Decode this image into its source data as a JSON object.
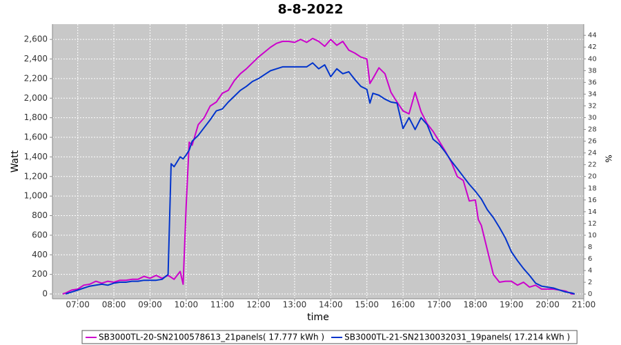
{
  "chart_data": {
    "type": "line",
    "title": "8-8-2022",
    "x_label": "time",
    "y_label": "Watt",
    "y2_label": "%",
    "grid": true,
    "legend": "bottom",
    "x": [
      "06:35",
      "06:40",
      "06:50",
      "07:00",
      "07:10",
      "07:20",
      "07:30",
      "07:40",
      "07:50",
      "08:00",
      "08:10",
      "08:20",
      "08:30",
      "08:40",
      "08:50",
      "09:00",
      "09:10",
      "09:20",
      "09:30",
      "09:35",
      "09:40",
      "09:50",
      "09:55",
      "10:00",
      "10:05",
      "10:10",
      "10:20",
      "10:30",
      "10:40",
      "10:50",
      "11:00",
      "11:10",
      "11:20",
      "11:30",
      "11:40",
      "11:50",
      "12:00",
      "12:10",
      "12:20",
      "12:30",
      "12:40",
      "12:50",
      "13:00",
      "13:10",
      "13:20",
      "13:30",
      "13:40",
      "13:50",
      "14:00",
      "14:10",
      "14:20",
      "14:30",
      "14:40",
      "14:50",
      "15:00",
      "15:05",
      "15:10",
      "15:20",
      "15:30",
      "15:40",
      "15:50",
      "16:00",
      "16:10",
      "16:20",
      "16:30",
      "16:40",
      "16:50",
      "17:00",
      "17:10",
      "17:20",
      "17:30",
      "17:40",
      "17:50",
      "18:00",
      "18:05",
      "18:10",
      "18:20",
      "18:30",
      "18:40",
      "18:50",
      "19:00",
      "19:10",
      "19:20",
      "19:30",
      "19:40",
      "19:50",
      "20:00",
      "20:10",
      "20:20",
      "20:30",
      "20:40",
      "20:45"
    ],
    "series": [
      {
        "name": "SB3000TL-20-SN2100578613_21panels( 17.777 kWh )",
        "color": "#cc00cc",
        "values": [
          0,
          10,
          40,
          50,
          90,
          100,
          130,
          110,
          130,
          120,
          140,
          140,
          150,
          150,
          180,
          160,
          190,
          160,
          190,
          170,
          150,
          230,
          100,
          900,
          1550,
          1520,
          1730,
          1800,
          1920,
          1960,
          2050,
          2080,
          2180,
          2250,
          2300,
          2360,
          2420,
          2470,
          2520,
          2560,
          2580,
          2580,
          2570,
          2600,
          2570,
          2610,
          2580,
          2530,
          2600,
          2540,
          2580,
          2490,
          2460,
          2420,
          2400,
          2150,
          2200,
          2310,
          2250,
          2060,
          1960,
          1870,
          1840,
          2060,
          1860,
          1740,
          1660,
          1560,
          1460,
          1350,
          1200,
          1160,
          950,
          960,
          760,
          700,
          450,
          200,
          120,
          130,
          130,
          90,
          120,
          70,
          90,
          50,
          50,
          50,
          40,
          30,
          0,
          0
        ]
      },
      {
        "name": "SB3000TL-21-SN2130032031_19panels( 17.214 kWh )",
        "color": "#0033cc",
        "values": [
          null,
          0,
          20,
          40,
          60,
          80,
          90,
          100,
          90,
          110,
          120,
          120,
          130,
          130,
          140,
          140,
          140,
          150,
          200,
          1330,
          1300,
          1400,
          1380,
          1420,
          1470,
          1560,
          1620,
          1700,
          1780,
          1870,
          1890,
          1960,
          2020,
          2080,
          2120,
          2170,
          2200,
          2240,
          2280,
          2300,
          2320,
          2320,
          2320,
          2320,
          2320,
          2360,
          2300,
          2340,
          2220,
          2300,
          2250,
          2270,
          2190,
          2120,
          2090,
          1950,
          2050,
          2030,
          1990,
          1960,
          1950,
          1690,
          1800,
          1680,
          1800,
          1730,
          1580,
          1530,
          1450,
          1360,
          1280,
          1200,
          1120,
          1050,
          1010,
          970,
          860,
          780,
          680,
          570,
          430,
          340,
          260,
          190,
          110,
          80,
          70,
          60,
          40,
          20,
          10,
          0
        ]
      }
    ],
    "xlim": [
      "06:18",
      "21:00"
    ],
    "xticks": [
      "07:00",
      "08:00",
      "09:00",
      "10:00",
      "11:00",
      "12:00",
      "13:00",
      "14:00",
      "15:00",
      "16:00",
      "17:00",
      "18:00",
      "19:00",
      "20:00",
      "21:00"
    ],
    "ylim": [
      -49,
      2756
    ],
    "yticks": [
      0,
      200,
      400,
      600,
      800,
      {
        "value": 1000,
        "label": "1,000"
      },
      {
        "value": 1200,
        "label": "1,200"
      },
      {
        "value": 1400,
        "label": "1,400"
      },
      {
        "value": 1600,
        "label": "1,600"
      },
      {
        "value": 1800,
        "label": "1,800"
      },
      {
        "value": 2000,
        "label": "2,000"
      },
      {
        "value": 2200,
        "label": "2,200"
      },
      {
        "value": 2400,
        "label": "2,400"
      },
      {
        "value": 2600,
        "label": "2,600"
      }
    ],
    "y2lim": [
      -0.8,
      45.9
    ],
    "y2ticks": [
      0,
      2,
      4,
      6,
      8,
      10,
      12,
      14,
      16,
      18,
      20,
      22,
      24,
      26,
      28,
      30,
      32,
      34,
      36,
      38,
      40,
      42,
      44
    ]
  }
}
